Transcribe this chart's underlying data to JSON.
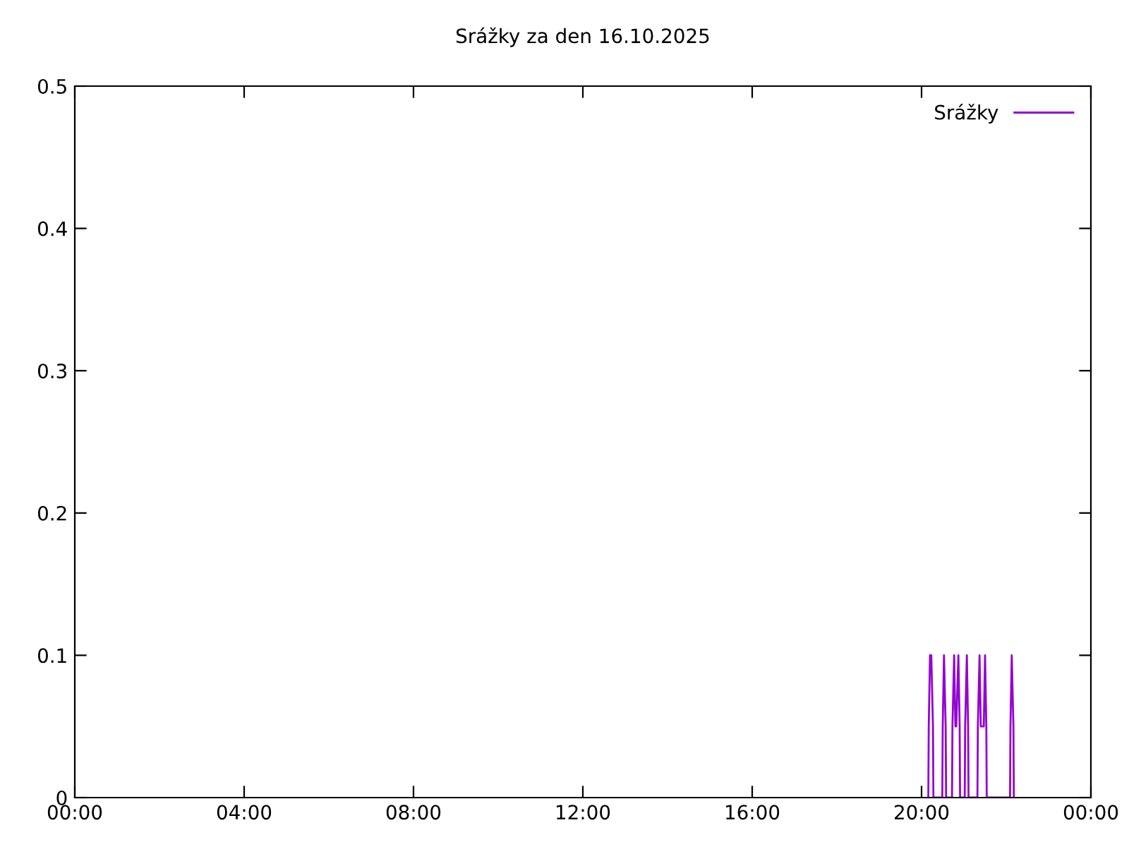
{
  "chart_data": {
    "type": "line",
    "title": "Srážky za den 16.10.2025",
    "series": [
      {
        "name": "Srážky",
        "color": "#9400d3",
        "x": [
          20.16,
          20.17,
          20.2,
          20.23,
          20.27,
          20.28,
          20.49,
          20.5,
          20.53,
          20.57,
          20.58,
          20.72,
          20.73,
          20.77,
          20.8,
          20.82,
          20.87,
          20.9,
          20.91,
          21.02,
          21.03,
          21.07,
          21.1,
          21.11,
          21.32,
          21.33,
          21.37,
          21.4,
          21.47,
          21.5,
          21.53,
          21.54,
          22.09,
          22.1,
          22.13,
          22.17,
          22.18
        ],
        "values": [
          0,
          0.05,
          0.1,
          0.1,
          0.05,
          0,
          0,
          0.05,
          0.1,
          0.05,
          0,
          0,
          0.05,
          0.1,
          0.05,
          0.05,
          0.1,
          0.05,
          0,
          0,
          0.05,
          0.1,
          0.05,
          0,
          0,
          0.05,
          0.1,
          0.05,
          0.05,
          0.1,
          0.05,
          0,
          0,
          0.05,
          0.1,
          0.05,
          0
        ]
      }
    ],
    "xlim": [
      0,
      24
    ],
    "xticks": [
      {
        "value": 0,
        "label": "00:00"
      },
      {
        "value": 4,
        "label": "04:00"
      },
      {
        "value": 8,
        "label": "08:00"
      },
      {
        "value": 12,
        "label": "12:00"
      },
      {
        "value": 16,
        "label": "16:00"
      },
      {
        "value": 20,
        "label": "20:00"
      },
      {
        "value": 24,
        "label": "00:00"
      }
    ],
    "ylim": [
      0,
      0.5
    ],
    "yticks": [
      0,
      0.1,
      0.2,
      0.3,
      0.4,
      0.5
    ],
    "grid": false,
    "legend": "top right",
    "marker": "none",
    "line_style": "solid"
  }
}
